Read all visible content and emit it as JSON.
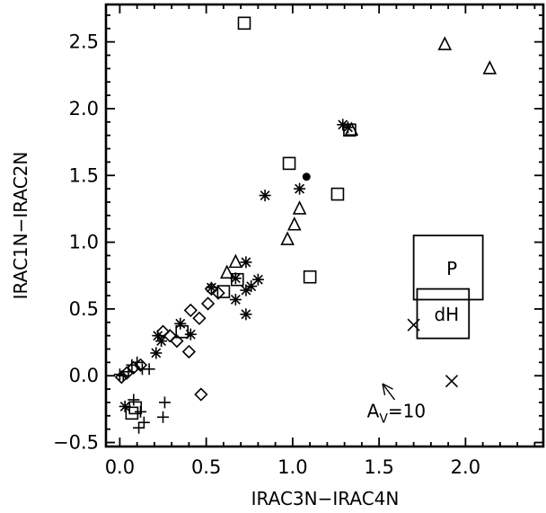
{
  "chart_data": {
    "type": "scatter",
    "xlabel": "IRAC3N−IRAC4N",
    "ylabel": "IRAC1N−IRAC2N",
    "xlim": [
      -0.08,
      2.45
    ],
    "ylim": [
      -0.53,
      2.78
    ],
    "x_ticks": [
      {
        "value": 0.0,
        "label": "0.0"
      },
      {
        "value": 0.5,
        "label": "0.5"
      },
      {
        "value": 1.0,
        "label": "1.0"
      },
      {
        "value": 1.5,
        "label": "1.5"
      },
      {
        "value": 2.0,
        "label": "2.0"
      }
    ],
    "y_ticks": [
      {
        "value": -0.5,
        "label": "−0.5"
      },
      {
        "value": 0.0,
        "label": "0.0"
      },
      {
        "value": 0.5,
        "label": "0.5"
      },
      {
        "value": 1.0,
        "label": "1.0"
      },
      {
        "value": 1.5,
        "label": "1.5"
      },
      {
        "value": 2.0,
        "label": "2.0"
      },
      {
        "value": 2.5,
        "label": "2.5"
      }
    ],
    "series": [
      {
        "marker": "square",
        "points": [
          [
            0.72,
            2.64
          ],
          [
            0.98,
            1.59
          ],
          [
            1.26,
            1.36
          ],
          [
            1.33,
            1.84
          ],
          [
            1.1,
            0.74
          ],
          [
            0.68,
            0.72
          ],
          [
            0.6,
            0.63
          ],
          [
            0.36,
            0.33
          ],
          [
            0.09,
            -0.24
          ],
          [
            0.07,
            -0.28
          ]
        ]
      },
      {
        "marker": "asterisk",
        "points": [
          [
            1.29,
            1.88
          ],
          [
            1.32,
            1.86
          ],
          [
            1.04,
            1.4
          ],
          [
            0.84,
            1.35
          ],
          [
            0.73,
            0.85
          ],
          [
            0.8,
            0.72
          ],
          [
            0.76,
            0.67
          ],
          [
            0.73,
            0.64
          ],
          [
            0.67,
            0.57
          ],
          [
            0.73,
            0.46
          ],
          [
            0.67,
            0.73
          ],
          [
            0.53,
            0.66
          ],
          [
            0.35,
            0.39
          ],
          [
            0.41,
            0.31
          ],
          [
            0.22,
            0.3
          ],
          [
            0.24,
            0.26
          ],
          [
            0.21,
            0.17
          ],
          [
            0.03,
            -0.23
          ]
        ]
      },
      {
        "marker": "triangle",
        "points": [
          [
            1.88,
            2.48
          ],
          [
            2.14,
            2.3
          ],
          [
            1.34,
            1.84
          ],
          [
            1.04,
            1.25
          ],
          [
            1.01,
            1.13
          ],
          [
            0.97,
            1.02
          ],
          [
            0.67,
            0.85
          ],
          [
            0.62,
            0.77
          ]
        ]
      },
      {
        "marker": "diamond",
        "points": [
          [
            0.53,
            0.65
          ],
          [
            0.57,
            0.62
          ],
          [
            0.51,
            0.54
          ],
          [
            0.41,
            0.49
          ],
          [
            0.46,
            0.43
          ],
          [
            0.25,
            0.33
          ],
          [
            0.29,
            0.3
          ],
          [
            0.33,
            0.26
          ],
          [
            0.4,
            0.18
          ],
          [
            0.47,
            -0.14
          ],
          [
            0.12,
            0.08
          ],
          [
            0.08,
            0.06
          ],
          [
            0.04,
            0.02
          ],
          [
            0.01,
            -0.01
          ]
        ]
      },
      {
        "marker": "plus",
        "points": [
          [
            0.07,
            0.08
          ],
          [
            0.1,
            0.1
          ],
          [
            0.13,
            0.05
          ],
          [
            0.17,
            0.05
          ],
          [
            0.05,
            0.03
          ],
          [
            0.02,
            0.0
          ],
          [
            0.0,
            0.01
          ],
          [
            0.12,
            -0.27
          ],
          [
            0.14,
            -0.35
          ],
          [
            0.11,
            -0.39
          ],
          [
            0.26,
            -0.2
          ],
          [
            0.25,
            -0.31
          ],
          [
            0.08,
            -0.18
          ]
        ]
      },
      {
        "marker": "cross",
        "points": [
          [
            1.92,
            -0.04
          ],
          [
            1.7,
            0.38
          ]
        ]
      },
      {
        "marker": "filled-circle",
        "points": [
          [
            1.08,
            1.49
          ]
        ]
      }
    ],
    "annotations": [
      {
        "label": "P",
        "box": {
          "x0": 1.7,
          "x1": 2.1,
          "y0": 0.57,
          "y1": 1.05
        }
      },
      {
        "label": "dH",
        "box": {
          "x0": 1.72,
          "x1": 2.02,
          "y0": 0.28,
          "y1": 0.65
        }
      },
      {
        "label_main": "A",
        "label_sub": "V",
        "label_rest": "=10",
        "label_at": [
          1.6,
          -0.31
        ],
        "arrow": {
          "from": [
            1.59,
            -0.18
          ],
          "to": [
            1.52,
            -0.06
          ]
        }
      }
    ]
  }
}
